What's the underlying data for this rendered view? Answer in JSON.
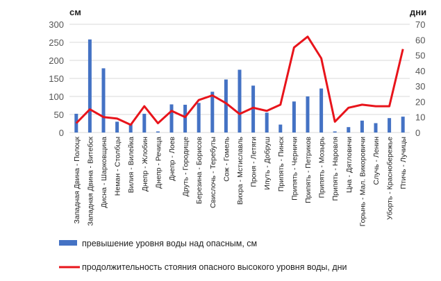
{
  "chart_data": {
    "type": "bar",
    "y_left_unit": "см",
    "y_right_unit": "дни",
    "ylim_left": [
      0,
      300
    ],
    "ylim_right": [
      0,
      70
    ],
    "yticks_left": [
      "0",
      "50",
      "100",
      "150",
      "200",
      "250",
      "300"
    ],
    "yticks_right": [
      "0",
      "10",
      "20",
      "30",
      "40",
      "50",
      "60",
      "70"
    ],
    "grid": true,
    "legend_position": "bottom",
    "categories": [
      "Западная Двина - Полоцк",
      "Западная Двина - Витебск",
      "Дисна - Шарковщина",
      "Неман - Столбцы",
      "Вилия - Вилейка",
      "Днепр - Жлобин",
      "Днепр - Речица",
      "Днепр - Лоев",
      "Друть - Городище",
      "Березина - Борисов",
      "Свислочь - Теребуты",
      "Сож - Гомель",
      "Вихра - Мстиславль",
      "Проня - Летяги",
      "Ипуть - Добруш",
      "Припять - Пинск",
      "Припять - Черничи",
      "Припять - Петриков",
      "Припять - Мозырь",
      "Припять - Наровля",
      "Цна - Дятловичи",
      "Горынь - Мал. Викоровичи",
      "Случь - Ленин",
      "Уборть - Краснобережье",
      "Птичь - Лучицы"
    ],
    "series": [
      {
        "name": "превышение уровня воды над опасным, см",
        "type": "bar",
        "axis": "left",
        "color": "#4472C4",
        "values": [
          52,
          258,
          178,
          30,
          25,
          52,
          3,
          78,
          77,
          82,
          113,
          147,
          174,
          130,
          55,
          22,
          86,
          100,
          122,
          3,
          15,
          33,
          26,
          40,
          44
        ]
      },
      {
        "name": "продолжительность стояния опасного высокого уровня воды, дни",
        "type": "line",
        "axis": "right",
        "color": "#E8141B",
        "values": [
          6,
          15,
          10,
          9,
          5,
          17,
          6,
          14,
          10,
          21,
          24,
          19,
          12,
          16,
          14,
          18,
          55,
          62,
          48,
          7,
          16,
          18,
          17,
          17,
          54
        ]
      }
    ]
  }
}
